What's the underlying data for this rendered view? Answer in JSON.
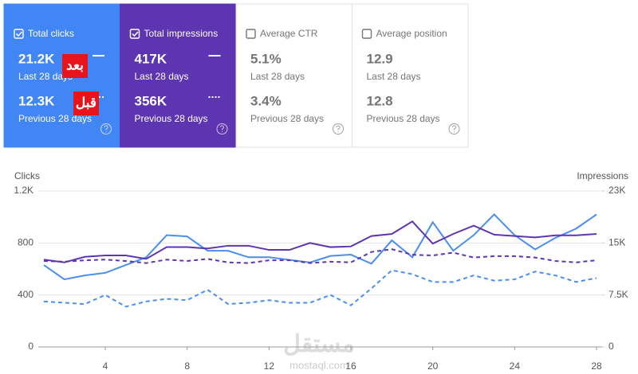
{
  "cards": [
    {
      "title": "Total clicks",
      "checked": true,
      "color": "#4285f4",
      "text_color": "#ffffff",
      "current": {
        "value": "21.2K",
        "period": "Last 28 days"
      },
      "previous": {
        "value": "12.3K",
        "period": "Previous 28 days"
      }
    },
    {
      "title": "Total impressions",
      "checked": true,
      "color": "#5e35b1",
      "text_color": "#ffffff",
      "current": {
        "value": "417K",
        "period": "Last 28 days"
      },
      "previous": {
        "value": "356K",
        "period": "Previous 28 days"
      }
    },
    {
      "title": "Average CTR",
      "checked": false,
      "color": "#ffffff",
      "text_color": "#757575",
      "current": {
        "value": "5.1%",
        "period": "Last 28 days"
      },
      "previous": {
        "value": "3.4%",
        "period": "Previous 28 days"
      }
    },
    {
      "title": "Average position",
      "checked": false,
      "color": "#ffffff",
      "text_color": "#757575",
      "current": {
        "value": "12.9",
        "period": "Last 28 days"
      },
      "previous": {
        "value": "12.8",
        "period": "Previous 28 days"
      }
    }
  ],
  "annotations": [
    "بعد",
    "قبل"
  ],
  "watermark": {
    "logo": "مستقل",
    "url": "mostaql.com"
  },
  "chart_data": {
    "type": "line",
    "y_label": "Clicks",
    "y2_label": "Impressions",
    "x": [
      1,
      2,
      3,
      4,
      5,
      6,
      7,
      8,
      9,
      10,
      11,
      12,
      13,
      14,
      15,
      16,
      17,
      18,
      19,
      20,
      21,
      22,
      23,
      24,
      25,
      26,
      27,
      28
    ],
    "xlim": [
      1,
      28
    ],
    "xticks": [
      4,
      8,
      12,
      16,
      20,
      24,
      28
    ],
    "ylim": [
      0,
      1200
    ],
    "yticks": [
      0,
      400,
      800,
      {
        "value": 1200,
        "label": "1.2K"
      }
    ],
    "y2lim": [
      0,
      22500
    ],
    "y2ticks": [
      0,
      {
        "value": 7500,
        "label": "7.5K"
      },
      {
        "value": 15000,
        "label": "15K"
      },
      {
        "value": 22500,
        "label": "23K"
      }
    ],
    "grid": true,
    "series": [
      {
        "color": "#4a8ef0",
        "dashed": false,
        "values": [
          630,
          520,
          550,
          570,
          630,
          690,
          860,
          850,
          740,
          740,
          690,
          690,
          670,
          650,
          700,
          710,
          640,
          820,
          690,
          960,
          740,
          860,
          1020,
          860,
          750,
          840,
          910,
          1020
        ]
      },
      {
        "color": "#4a8ef0",
        "dashed": true,
        "values": [
          350,
          340,
          330,
          400,
          310,
          350,
          370,
          360,
          440,
          330,
          340,
          360,
          340,
          340,
          400,
          320,
          450,
          590,
          560,
          500,
          500,
          550,
          510,
          520,
          580,
          550,
          500,
          530
        ]
      },
      {
        "color": "#5e35b1",
        "dashed": false,
        "axis": "y2",
        "values": [
          12600,
          12200,
          13000,
          13200,
          13200,
          12700,
          14400,
          14400,
          14200,
          14600,
          14600,
          14000,
          14000,
          15000,
          14400,
          14500,
          16000,
          16300,
          18100,
          14900,
          16300,
          17500,
          16200,
          16000,
          15800,
          16100,
          16100,
          16300
        ]
      },
      {
        "color": "#5e35b1",
        "dashed": true,
        "axis": "y2",
        "values": [
          12400,
          12300,
          12500,
          12600,
          12400,
          12100,
          12600,
          12400,
          12700,
          12200,
          12100,
          12500,
          12500,
          12100,
          12300,
          12200,
          13700,
          14100,
          13300,
          13200,
          13600,
          12900,
          13100,
          13100,
          12900,
          12400,
          12200,
          12500
        ]
      }
    ]
  }
}
